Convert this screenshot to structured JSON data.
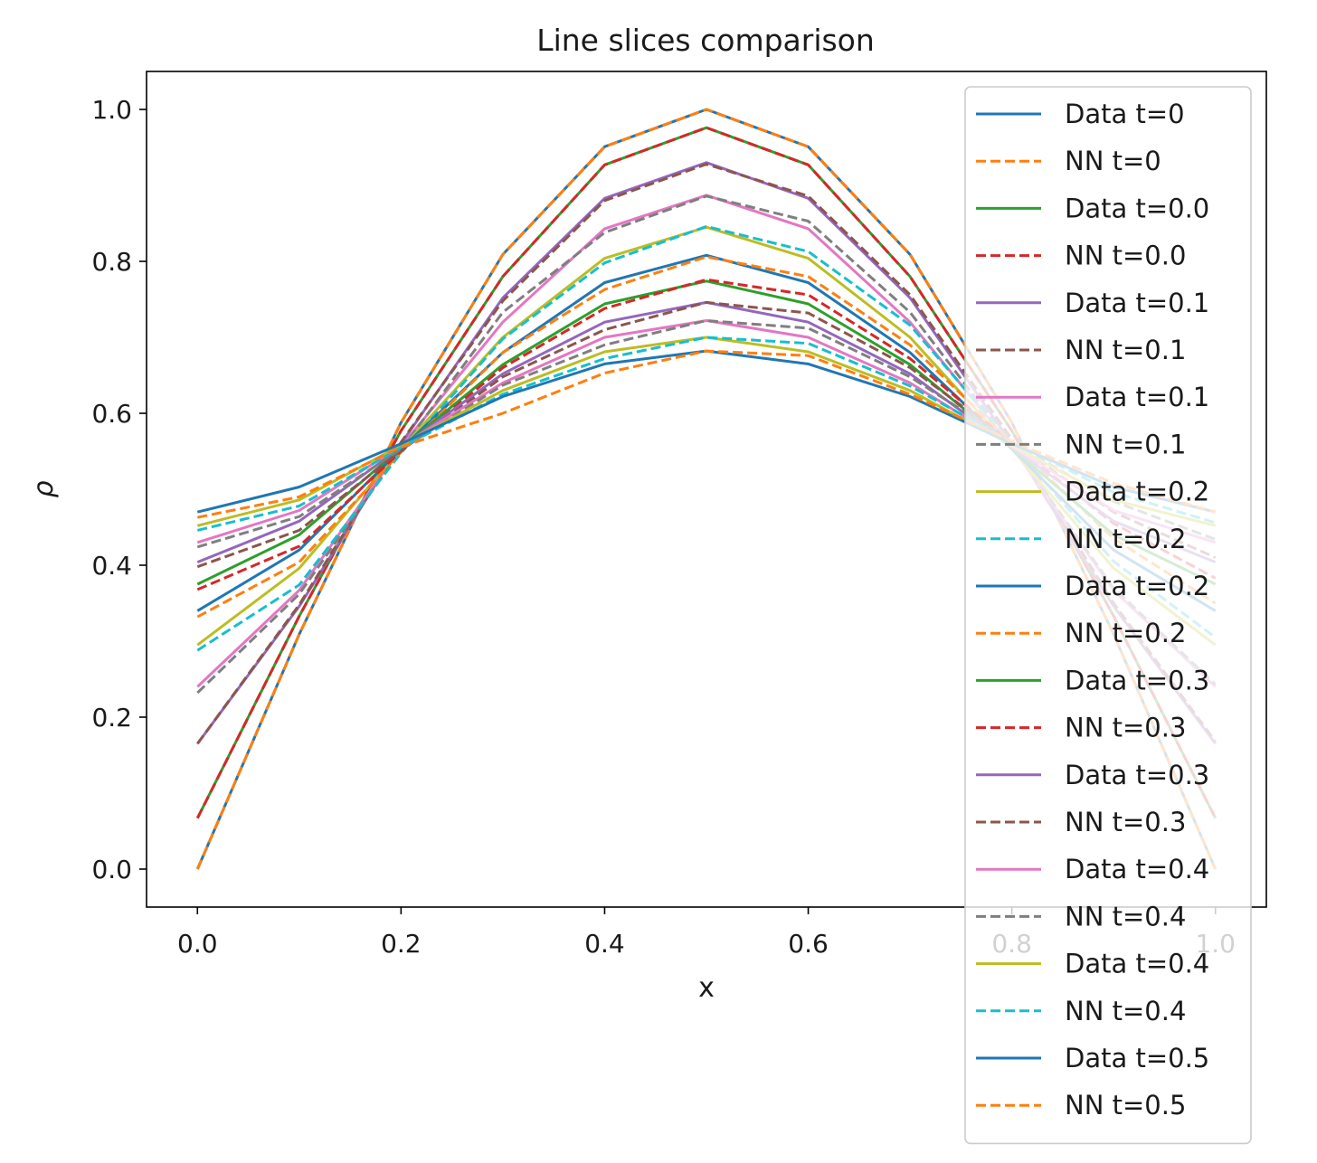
{
  "chart_data": {
    "type": "line",
    "title": "Line slices comparison",
    "xlabel": "x",
    "ylabel": "ρ",
    "xlim": [
      -0.05,
      1.05
    ],
    "ylim": [
      -0.05,
      1.05
    ],
    "x_ticks": [
      "0.0",
      "0.2",
      "0.4",
      "0.6",
      "0.8",
      "1.0"
    ],
    "y_ticks": [
      "0.0",
      "0.2",
      "0.4",
      "0.6",
      "0.8",
      "1.0"
    ],
    "grid": false,
    "legend_position": "upper-right",
    "x": [
      0.0,
      0.1,
      0.2,
      0.3,
      0.4,
      0.5,
      0.6,
      0.7,
      0.8,
      0.9,
      1.0
    ],
    "series": [
      {
        "name": "Data t=0",
        "style": "solid",
        "color": "#1f77b4",
        "values": [
          0.0,
          0.309,
          0.588,
          0.809,
          0.951,
          1.0,
          0.951,
          0.809,
          0.588,
          0.309,
          0.0
        ]
      },
      {
        "name": "NN t=0",
        "style": "dashed",
        "color": "#ff7f0e",
        "values": [
          0.0,
          0.309,
          0.588,
          0.809,
          0.951,
          1.0,
          0.951,
          0.809,
          0.588,
          0.309,
          0.0
        ]
      },
      {
        "name": "Data t=0.0",
        "style": "solid",
        "color": "#2ca02c",
        "values": [
          0.067,
          0.333,
          0.577,
          0.78,
          0.927,
          0.976,
          0.927,
          0.78,
          0.577,
          0.333,
          0.067
        ]
      },
      {
        "name": "NN t=0.0",
        "style": "dashed",
        "color": "#d62728",
        "values": [
          0.067,
          0.333,
          0.577,
          0.78,
          0.927,
          0.976,
          0.927,
          0.78,
          0.577,
          0.333,
          0.067
        ]
      },
      {
        "name": "Data t=0.1",
        "style": "solid",
        "color": "#9467bd",
        "values": [
          0.165,
          0.346,
          0.56,
          0.752,
          0.883,
          0.93,
          0.883,
          0.752,
          0.56,
          0.346,
          0.165
        ]
      },
      {
        "name": "NN t=0.1",
        "style": "dashed",
        "color": "#8c564b",
        "values": [
          0.165,
          0.348,
          0.562,
          0.748,
          0.88,
          0.928,
          0.886,
          0.756,
          0.566,
          0.35,
          0.168
        ]
      },
      {
        "name": "Data t=0.1",
        "style": "solid",
        "color": "#e377c2",
        "values": [
          0.24,
          0.367,
          0.556,
          0.72,
          0.843,
          0.887,
          0.843,
          0.72,
          0.556,
          0.367,
          0.24
        ]
      },
      {
        "name": "NN t=0.1",
        "style": "dashed",
        "color": "#7f7f7f",
        "values": [
          0.232,
          0.362,
          0.552,
          0.733,
          0.838,
          0.886,
          0.853,
          0.733,
          0.558,
          0.37,
          0.243
        ]
      },
      {
        "name": "Data t=0.2",
        "style": "solid",
        "color": "#bcbd22",
        "values": [
          0.295,
          0.396,
          0.553,
          0.7,
          0.804,
          0.845,
          0.804,
          0.7,
          0.553,
          0.396,
          0.295
        ]
      },
      {
        "name": "NN t=0.2",
        "style": "dashed",
        "color": "#17becf",
        "values": [
          0.288,
          0.374,
          0.548,
          0.698,
          0.798,
          0.846,
          0.813,
          0.716,
          0.56,
          0.405,
          0.305
        ]
      },
      {
        "name": "Data t=0.2",
        "style": "solid",
        "color": "#1f77b4",
        "values": [
          0.34,
          0.42,
          0.553,
          0.68,
          0.772,
          0.808,
          0.772,
          0.68,
          0.553,
          0.42,
          0.34
        ]
      },
      {
        "name": "NN t=0.2",
        "style": "dashed",
        "color": "#ff7f0e",
        "values": [
          0.332,
          0.404,
          0.549,
          0.68,
          0.763,
          0.806,
          0.78,
          0.69,
          0.561,
          0.435,
          0.35
        ]
      },
      {
        "name": "Data t=0.3",
        "style": "solid",
        "color": "#2ca02c",
        "values": [
          0.375,
          0.44,
          0.554,
          0.664,
          0.744,
          0.774,
          0.744,
          0.664,
          0.554,
          0.44,
          0.375
        ]
      },
      {
        "name": "NN t=0.3",
        "style": "dashed",
        "color": "#d62728",
        "values": [
          0.368,
          0.425,
          0.55,
          0.66,
          0.738,
          0.776,
          0.756,
          0.672,
          0.56,
          0.455,
          0.383
        ]
      },
      {
        "name": "Data t=0.3",
        "style": "solid",
        "color": "#9467bd",
        "values": [
          0.404,
          0.458,
          0.555,
          0.652,
          0.72,
          0.746,
          0.72,
          0.652,
          0.555,
          0.458,
          0.404
        ]
      },
      {
        "name": "NN t=0.3",
        "style": "dashed",
        "color": "#8c564b",
        "values": [
          0.398,
          0.446,
          0.551,
          0.648,
          0.71,
          0.746,
          0.732,
          0.66,
          0.561,
          0.47,
          0.41
        ]
      },
      {
        "name": "Data t=0.4",
        "style": "solid",
        "color": "#e377c2",
        "values": [
          0.43,
          0.472,
          0.557,
          0.64,
          0.7,
          0.722,
          0.7,
          0.64,
          0.557,
          0.472,
          0.43
        ]
      },
      {
        "name": "NN t=0.4",
        "style": "dashed",
        "color": "#7f7f7f",
        "values": [
          0.424,
          0.464,
          0.553,
          0.637,
          0.69,
          0.722,
          0.712,
          0.648,
          0.562,
          0.484,
          0.434
        ]
      },
      {
        "name": "Data t=0.4",
        "style": "solid",
        "color": "#bcbd22",
        "values": [
          0.452,
          0.486,
          0.558,
          0.63,
          0.681,
          0.7,
          0.681,
          0.63,
          0.558,
          0.486,
          0.452
        ]
      },
      {
        "name": "NN t=0.4",
        "style": "dashed",
        "color": "#17becf",
        "values": [
          0.446,
          0.478,
          0.555,
          0.625,
          0.672,
          0.7,
          0.692,
          0.636,
          0.562,
          0.496,
          0.456
        ]
      },
      {
        "name": "Data t=0.5",
        "style": "solid",
        "color": "#1f77b4",
        "values": [
          0.47,
          0.503,
          0.56,
          0.622,
          0.665,
          0.682,
          0.665,
          0.622,
          0.56,
          0.503,
          0.47
        ]
      },
      {
        "name": "NN t=0.5",
        "style": "dashed",
        "color": "#ff7f0e",
        "values": [
          0.463,
          0.49,
          0.556,
          0.6,
          0.653,
          0.682,
          0.676,
          0.625,
          0.563,
          0.508,
          0.47
        ]
      }
    ]
  }
}
